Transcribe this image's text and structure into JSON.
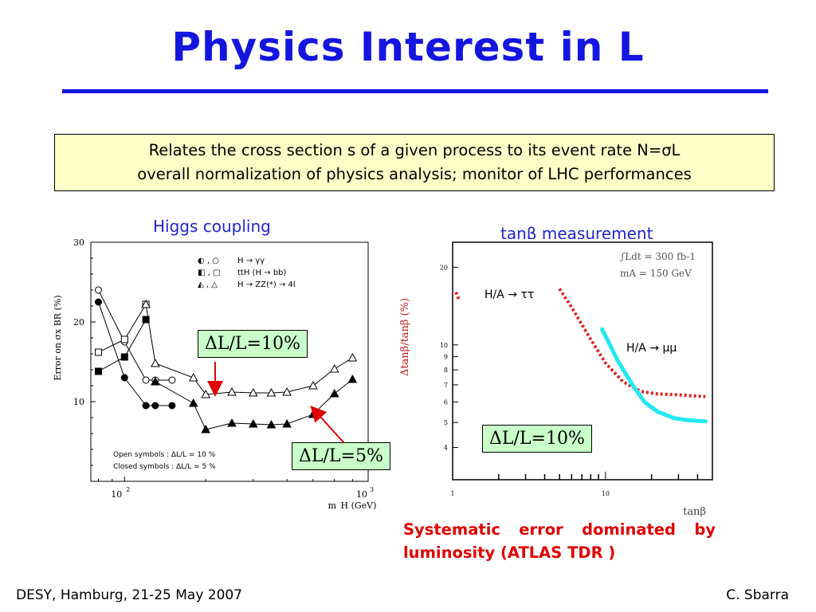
{
  "slide": {
    "title": "Physics Interest in L",
    "box_line1": "Relates the cross section s of a given process to its event rate N=σL",
    "box_line2": "overall normalization of physics analysis; monitor of LHC performances",
    "left_title": "Higgs coupling",
    "right_title": "tanβ measurement",
    "callout_left_top": "ΔL/L=10%",
    "callout_left_bottom": "ΔL/L=5%",
    "callout_right": "ΔL/L=10%",
    "systematic_text": "Systematic error dominated by luminosity  (ATLAS TDR )",
    "footer_left": "DESY, Hamburg, 21-25 May 2007",
    "footer_right": "C. Sbarra"
  },
  "chart_data": [
    {
      "type": "line",
      "xlabel": "m_H (GeV)",
      "ylabel": "Error on σx BR (%)",
      "x_scale": "log",
      "xlim": [
        75,
        800
      ],
      "ylim": [
        0,
        30
      ],
      "y_ticks": [
        "10",
        "20",
        "30"
      ],
      "x_tick_labels": [
        "10",
        "2",
        "10",
        "3"
      ],
      "legend": [
        {
          "symbol": "◐ , ○",
          "text": "H → γγ"
        },
        {
          "symbol": "◧ , □",
          "text": "ttH (H → bb)"
        },
        {
          "symbol": "◭ , △",
          "text": "H → ZZ(*) → 4l"
        }
      ],
      "note_open": "Open symbols   :   ΔL/L = 10 %",
      "note_closed": "Closed symbols :   ΔL/L = 5 %",
      "series": [
        {
          "name": "H → γγ (ΔL/L = 10%)",
          "marker": "open-circle",
          "x": [
            80,
            100,
            120,
            130,
            150
          ],
          "y": [
            24,
            17.5,
            12.7,
            12.7,
            12.7
          ]
        },
        {
          "name": "H → γγ (ΔL/L = 5%)",
          "marker": "closed-circle",
          "x": [
            80,
            100,
            120,
            130,
            150
          ],
          "y": [
            22.5,
            13,
            9.5,
            9.5,
            9.5
          ]
        },
        {
          "name": "ttH (H → bb) (ΔL/L = 10%)",
          "marker": "open-square",
          "x": [
            80,
            100,
            120
          ],
          "y": [
            16.2,
            17.8,
            22.2
          ]
        },
        {
          "name": "ttH (H → bb) (ΔL/L = 5%)",
          "marker": "closed-square",
          "x": [
            80,
            100,
            120
          ],
          "y": [
            13.8,
            15.6,
            20.3
          ]
        },
        {
          "name": "H → ZZ → 4l (ΔL/L = 10%)",
          "marker": "open-triangle",
          "x": [
            120,
            130,
            180,
            200,
            250,
            300,
            350,
            400,
            500,
            600,
            700
          ],
          "y": [
            22.2,
            14.8,
            13,
            10.9,
            11.2,
            11.1,
            11.1,
            11.2,
            12,
            14.1,
            15.5
          ]
        },
        {
          "name": "H → ZZ → 4l (ΔL/L = 5%)",
          "marker": "closed-triangle",
          "x": [
            130,
            180,
            200,
            250,
            300,
            350,
            400,
            500,
            600,
            700
          ],
          "y": [
            12.5,
            9.8,
            6.5,
            7.3,
            7.2,
            7.1,
            7.2,
            8.4,
            11,
            12.8
          ]
        }
      ]
    },
    {
      "type": "line",
      "xlabel": "tanβ",
      "ylabel": "Δtanβ/tanβ (%)",
      "x_scale": "log",
      "y_scale": "log",
      "xlim": [
        1,
        50
      ],
      "ylim": [
        3,
        25
      ],
      "y_ticks": [
        "4",
        "5",
        "6",
        "7",
        "8",
        "9",
        "10",
        "20"
      ],
      "x_ticks": [
        "1",
        "10"
      ],
      "legend_line1": "∫Ldt = 300 fb-1",
      "legend_line2": "mA = 150 GeV",
      "series": [
        {
          "name": "H/A → ττ",
          "line": "dotted-red",
          "x": [
            1.05,
            1.1,
            5,
            6,
            8,
            10,
            13,
            17,
            22,
            30,
            45
          ],
          "y": [
            16,
            15,
            16.5,
            14,
            10.5,
            8.5,
            7.2,
            6.6,
            6.45,
            6.4,
            6.3
          ]
        },
        {
          "name": "H/A → μμ",
          "line": "cyan",
          "x": [
            9.5,
            12,
            15,
            18,
            22,
            28,
            35,
            45
          ],
          "y": [
            11.5,
            8.7,
            7.0,
            6.0,
            5.5,
            5.2,
            5.1,
            5.05
          ]
        }
      ]
    }
  ]
}
